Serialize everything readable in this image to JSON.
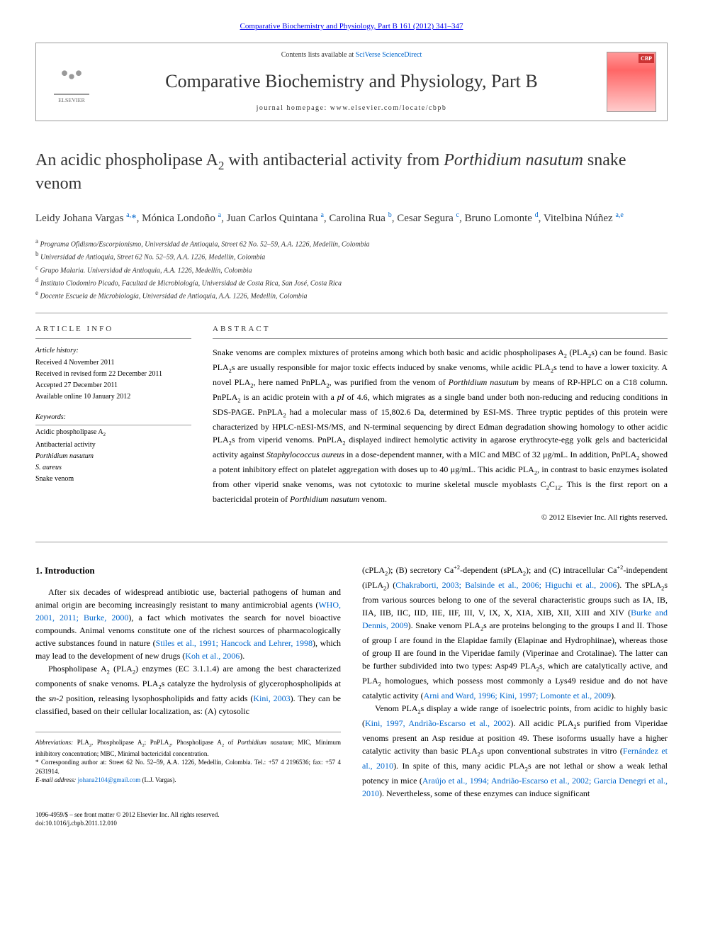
{
  "journal_link": "Comparative Biochemistry and Physiology, Part B 161 (2012) 341–347",
  "header": {
    "contents_prefix": "Contents lists available at ",
    "contents_link": "SciVerse ScienceDirect",
    "journal_name": "Comparative Biochemistry and Physiology, Part B",
    "homepage_prefix": "journal homepage: ",
    "homepage_url": "www.elsevier.com/locate/cbpb",
    "elsevier_label": "ELSEVIER",
    "cover_label": "CBP"
  },
  "title_html": "An acidic phospholipase A<sub>2</sub> with antibacterial activity from <em>Porthidium nasutum</em> snake venom",
  "authors_html": "Leidy Johana Vargas <sup>a,</sup><span class='star'>*</span>, Mónica Londoño <sup>a</sup>, Juan Carlos Quintana <sup>a</sup>, Carolina Rua <sup>b</sup>, Cesar Segura <sup>c</sup>, Bruno Lomonte <sup>d</sup>, Vitelbina Núñez <sup>a,e</sup>",
  "affiliations": [
    {
      "sup": "a",
      "text": "Programa Ofidismo/Escorpionismo, Universidad de Antioquia, Street 62 No. 52–59, A.A. 1226, Medellín, Colombia"
    },
    {
      "sup": "b",
      "text": "Universidad de Antioquia, Street 62 No. 52–59, A.A. 1226, Medellín, Colombia"
    },
    {
      "sup": "c",
      "text": "Grupo Malaria. Universidad de Antioquia, A.A. 1226, Medellín, Colombia"
    },
    {
      "sup": "d",
      "text": "Instituto Clodomiro Picado, Facultad de Microbiología, Universidad de Costa Rica, San José, Costa Rica"
    },
    {
      "sup": "e",
      "text": "Docente Escuela de Microbiología, Universidad de Antioquia, A.A. 1226, Medellín, Colombia"
    }
  ],
  "article_info": {
    "section_label": "ARTICLE INFO",
    "history_label": "Article history:",
    "history": [
      "Received 4 November 2011",
      "Received in revised form 22 December 2011",
      "Accepted 27 December 2011",
      "Available online 10 January 2012"
    ],
    "keywords_label": "Keywords:",
    "keywords_html": [
      "Acidic phospholipase A<sub>2</sub>",
      "Antibacterial activity",
      "<em>Porthidium nasutum</em>",
      "<em>S. aureus</em>",
      "Snake venom"
    ]
  },
  "abstract": {
    "section_label": "ABSTRACT",
    "text_html": "Snake venoms are complex mixtures of proteins among which both basic and acidic phospholipases A<sub>2</sub> (PLA<sub>2</sub>s) can be found. Basic PLA<sub>2</sub>s are usually responsible for major toxic effects induced by snake venoms, while acidic PLA<sub>2</sub>s tend to have a lower toxicity. A novel PLA<sub>2</sub>, here named PnPLA<sub>2</sub>, was purified from the venom of <em>Porthidium nasutum</em> by means of RP-HPLC on a C18 column. PnPLA<sub>2</sub> is an acidic protein with a <em>pI</em> of 4.6, which migrates as a single band under both non-reducing and reducing conditions in SDS-PAGE. PnPLA<sub>2</sub> had a molecular mass of 15,802.6 Da, determined by ESI-MS. Three tryptic peptides of this protein were characterized by HPLC-nESI-MS/MS, and N-terminal sequencing by direct Edman degradation showing homology to other acidic PLA<sub>2</sub>s from viperid venoms. PnPLA<sub>2</sub> displayed indirect hemolytic activity in agarose erythrocyte-egg yolk gels and bactericidal activity against <em>Staphylococcus aureus</em> in a dose-dependent manner, with a MIC and MBC of 32 μg/mL. In addition, PnPLA<sub>2</sub> showed a potent inhibitory effect on platelet aggregation with doses up to 40 μg/mL. This acidic PLA<sub>2</sub>, in contrast to basic enzymes isolated from other viperid snake venoms, was not cytotoxic to murine skeletal muscle myoblasts C<sub>2</sub>C<sub>12</sub>. This is the first report on a bactericidal protein of <em>Porthidium nasutum</em> venom.",
    "copyright": "© 2012 Elsevier Inc. All rights reserved."
  },
  "intro": {
    "title": "1. Introduction",
    "para1_html": "After six decades of widespread antibiotic use, bacterial pathogens of human and animal origin are becoming increasingly resistant to many antimicrobial agents (<a href='#'>WHO, 2001, 2011; Burke, 2000</a>), a fact which motivates the search for novel bioactive compounds. Animal venoms constitute one of the richest sources of pharmacologically active substances found in nature (<a href='#'>Stiles et al., 1991; Hancock and Lehrer, 1998</a>), which may lead to the development of new drugs (<a href='#'>Koh et al., 2006</a>).",
    "para2_html": "Phospholipase A<sub>2</sub> (PLA<sub>2</sub>) enzymes (EC 3.1.1.4) are among the best characterized components of snake venoms. PLA<sub>2</sub>s catalyze the hydrolysis of glycerophospholipids at the <em>sn-2</em> position, releasing lysophospholipids and fatty acids (<a href='#'>Kini, 2003</a>). They can be classified, based on their cellular localization, as: (A) cytosolic",
    "para3_html": "(cPLA<sub>2</sub>); (B) secretory Ca<sup>+2</sup>-dependent (sPLA<sub>2</sub>); and (C) intracellular Ca<sup>+2</sup>-independent (iPLA<sub>2</sub>) (<a href='#'>Chakraborti, 2003; Balsinde et al., 2006; Higuchi et al., 2006</a>). The sPLA<sub>2</sub>s from various sources belong to one of the several characteristic groups such as IA, IB, IIA, IIB, IIC, IID, IIE, IIF, III, V, IX, X, XIA, XIB, XII, XIII and XIV (<a href='#'>Burke and Dennis, 2009</a>). Snake venom PLA<sub>2</sub>s are proteins belonging to the groups I and II. Those of group I are found in the Elapidae family (Elapinae and Hydrophiinae), whereas those of group II are found in the Viperidae family (Viperinae and Crotalinae). The latter can be further subdivided into two types: Asp49 PLA<sub>2</sub>s, which are catalytically active, and PLA<sub>2</sub> homologues, which possess most commonly a Lys49 residue and do not have catalytic activity (<a href='#'>Arni and Ward, 1996; Kini, 1997; Lomonte et al., 2009</a>).",
    "para4_html": "Venom PLA<sub>2</sub>s display a wide range of isoelectric points, from acidic to highly basic (<a href='#'>Kini, 1997, Andrião-Escarso et al., 2002</a>). All acidic PLA<sub>2</sub>s purified from Viperidae venoms present an Asp residue at position 49. These isoforms usually have a higher catalytic activity than basic PLA<sub>2</sub>s upon conventional substrates in vitro (<a href='#'>Fernández et al., 2010</a>). In spite of this, many acidic PLA<sub>2</sub>s are not lethal or show a weak lethal potency in mice (<a href='#'>Araújo et al., 1994; Andrião-Escarso et al., 2002; Garcia Denegri et al., 2010</a>). Nevertheless, some of these enzymes can induce significant"
  },
  "footer": {
    "abbreviations_html": "<em>Abbreviations:</em> PLA<sub>2</sub>, Phospholipase A<sub>2</sub>; PnPLA<sub>2</sub>, Phospholipase A<sub>2</sub> of <em>Porthidium nasutum</em>; MIC, Minimum inhibitory concentration; MBC, Minimal bactericidal concentration.",
    "corresponding_html": "* Corresponding author at: Street 62 No. 52–59, A.A. 1226, Medellín, Colombia. Tel.: +57 4 2196536; fax: +57 4 2631914.",
    "email_html": "<em>E-mail address:</em> <a href='#'>johana2104@gmail.com</a> (L.J. Vargas).",
    "issn": "1096-4959/$ – see front matter © 2012 Elsevier Inc. All rights reserved.",
    "doi": "doi:10.1016/j.cbpb.2011.12.010"
  },
  "colors": {
    "link": "#0066cc",
    "text": "#333333",
    "border": "#999999",
    "cover_bg": "#ff9999",
    "cover_label_bg": "#cc3333"
  }
}
